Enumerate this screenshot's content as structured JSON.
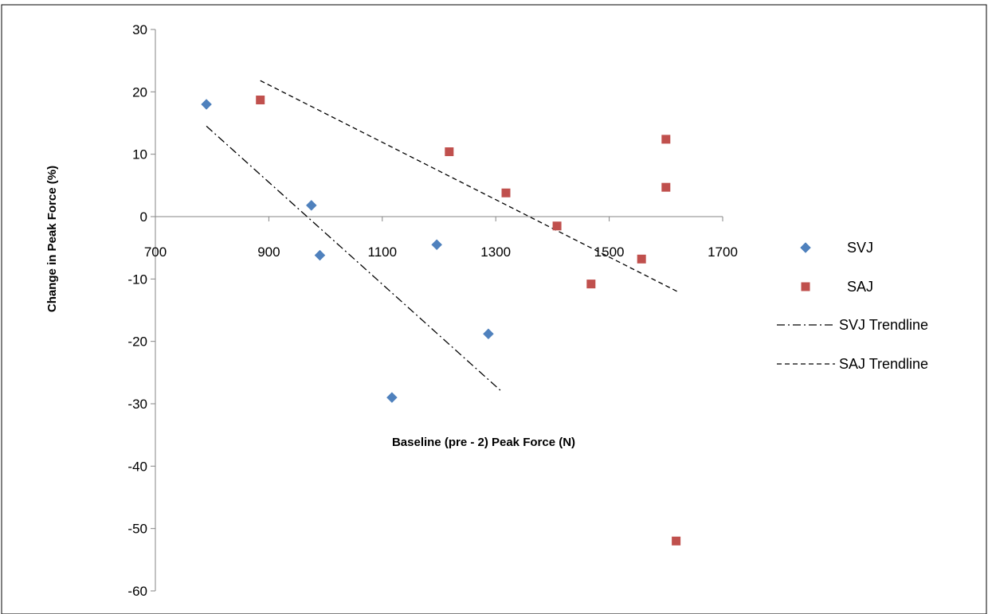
{
  "chart_data": {
    "type": "scatter",
    "title": "",
    "xlabel": "Baseline (pre  - 2) Peak Force (N)",
    "ylabel": "Change in Peak Force (%)",
    "xlim": [
      700,
      1700
    ],
    "ylim": [
      -60,
      30
    ],
    "x_ticks": [
      700,
      900,
      1100,
      1300,
      1500,
      1700
    ],
    "y_ticks": [
      30,
      20,
      10,
      0,
      -10,
      -20,
      -30,
      -40,
      -50,
      -60
    ],
    "grid": false,
    "legend_position": "right",
    "series": [
      {
        "name": "SVJ",
        "marker": "diamond",
        "color": "#4F81BD",
        "x": [
          790,
          975,
          990,
          1117,
          1196,
          1287
        ],
        "y": [
          18,
          1.8,
          -6.2,
          -29,
          -4.5,
          -18.8
        ]
      },
      {
        "name": "SAJ",
        "marker": "square",
        "color": "#C0504D",
        "x": [
          885,
          1218,
          1318,
          1408,
          1468,
          1557,
          1600,
          1600,
          1618
        ],
        "y": [
          18.7,
          10.4,
          3.8,
          -1.5,
          -10.8,
          -6.8,
          12.4,
          4.7,
          -52
        ]
      }
    ],
    "trendlines": [
      {
        "name": "SVJ Trendline",
        "style": "dash-dot",
        "color": "#000000",
        "x": [
          790,
          1310
        ],
        "y": [
          14.5,
          -28
        ]
      },
      {
        "name": "SAJ Trendline",
        "style": "dashed",
        "color": "#000000",
        "x": [
          885,
          1620
        ],
        "y": [
          21.8,
          -12
        ]
      }
    ]
  }
}
